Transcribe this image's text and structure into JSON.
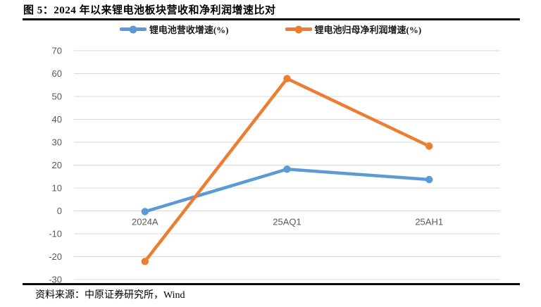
{
  "figure": {
    "title": "图 5：2024 年以来锂电池板块营收和净利润增速比对",
    "source": "资料来源：中原证券研究所，Wind"
  },
  "chart_data": {
    "type": "line",
    "title": "",
    "xlabel": "",
    "ylabel": "",
    "categories": [
      "2024A",
      "25AQ1",
      "25AH1"
    ],
    "series": [
      {
        "name": "锂电池营收增速(%)",
        "color": "#5B9BD5",
        "values": [
          -0.3,
          18.2,
          13.7
        ]
      },
      {
        "name": "锂电池归母净利润增速(%)",
        "color": "#ED7D31",
        "values": [
          -22.1,
          57.8,
          28.3
        ]
      }
    ],
    "ylim": [
      -30,
      70
    ],
    "ytick_step": 10,
    "grid": true,
    "legend_position": "top",
    "gridline_color": "#D9D9D9",
    "tick_label_color": "#595959"
  }
}
